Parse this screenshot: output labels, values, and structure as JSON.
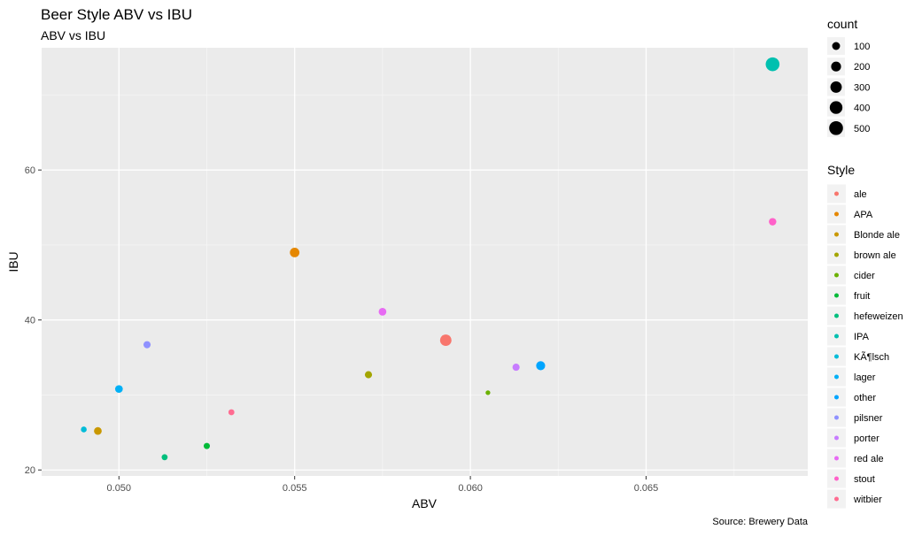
{
  "chart_data": {
    "type": "scatter",
    "title": "Beer Style ABV vs IBU",
    "subtitle": "ABV vs IBU",
    "xlabel": "ABV",
    "ylabel": "IBU",
    "caption": "Source: Brewery Data",
    "xlim": [
      0.0478,
      0.0696
    ],
    "ylim": [
      19.2,
      76.3
    ],
    "x_ticks": [
      0.05,
      0.055,
      0.06,
      0.065
    ],
    "x_tick_labels": [
      "0.050",
      "0.055",
      "0.060",
      "0.065"
    ],
    "y_ticks": [
      20,
      40,
      60
    ],
    "y_tick_labels": [
      "20",
      "40",
      "60"
    ],
    "grid": true,
    "legend_position": "right",
    "size_legend": {
      "title": "count",
      "entries": [
        {
          "label": "100",
          "value": 100
        },
        {
          "label": "200",
          "value": 200
        },
        {
          "label": "300",
          "value": 300
        },
        {
          "label": "400",
          "value": 400
        },
        {
          "label": "500",
          "value": 500
        }
      ]
    },
    "color_legend": {
      "title": "Style",
      "entries": [
        {
          "label": "ale",
          "color": "#F8766D"
        },
        {
          "label": "APA",
          "color": "#E58700"
        },
        {
          "label": "Blonde ale",
          "color": "#C99800"
        },
        {
          "label": "brown ale",
          "color": "#A3A500"
        },
        {
          "label": "cider",
          "color": "#6BB100"
        },
        {
          "label": "fruit",
          "color": "#00BA38"
        },
        {
          "label": "hefeweizen",
          "color": "#00BF7D"
        },
        {
          "label": "IPA",
          "color": "#00C0AF"
        },
        {
          "label": "KÃ¶lsch",
          "color": "#00BCD8"
        },
        {
          "label": "lager",
          "color": "#00B0F6"
        },
        {
          "label": "other",
          "color": "#00A5FF"
        },
        {
          "label": "pilsner",
          "color": "#8F91FF"
        },
        {
          "label": "porter",
          "color": "#C77CFF"
        },
        {
          "label": "red ale",
          "color": "#E76BF3"
        },
        {
          "label": "stout",
          "color": "#FF61C9"
        },
        {
          "label": "witbier",
          "color": "#FF6C91"
        }
      ]
    },
    "points": [
      {
        "style": "ale",
        "x": 0.0593,
        "y": 37.3,
        "count": 300
      },
      {
        "style": "APA",
        "x": 0.055,
        "y": 49.0,
        "count": 180
      },
      {
        "style": "Blonde ale",
        "x": 0.0494,
        "y": 25.2,
        "count": 90
      },
      {
        "style": "brown ale",
        "x": 0.0571,
        "y": 32.7,
        "count": 70
      },
      {
        "style": "cider",
        "x": 0.0605,
        "y": 30.3,
        "count": 10
      },
      {
        "style": "fruit",
        "x": 0.0525,
        "y": 23.2,
        "count": 40
      },
      {
        "style": "hefeweizen",
        "x": 0.0513,
        "y": 21.7,
        "count": 35
      },
      {
        "style": "IPA",
        "x": 0.0686,
        "y": 74.1,
        "count": 500
      },
      {
        "style": "KÃ¶lsch",
        "x": 0.049,
        "y": 25.4,
        "count": 30
      },
      {
        "style": "lager",
        "x": 0.05,
        "y": 30.8,
        "count": 90
      },
      {
        "style": "other",
        "x": 0.062,
        "y": 33.9,
        "count": 150
      },
      {
        "style": "pilsner",
        "x": 0.0508,
        "y": 36.7,
        "count": 70
      },
      {
        "style": "porter",
        "x": 0.0613,
        "y": 33.7,
        "count": 70
      },
      {
        "style": "red ale",
        "x": 0.0575,
        "y": 41.1,
        "count": 90
      },
      {
        "style": "stout",
        "x": 0.0686,
        "y": 53.1,
        "count": 80
      },
      {
        "style": "witbier",
        "x": 0.0532,
        "y": 27.7,
        "count": 35
      }
    ]
  }
}
